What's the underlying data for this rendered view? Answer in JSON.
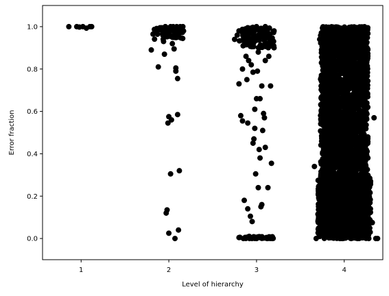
{
  "chart_data": {
    "type": "scatter",
    "title": "",
    "xlabel": "Level of hierarchy",
    "ylabel": "Error fraction",
    "xlim": [
      0.56,
      4.44
    ],
    "ylim": [
      -0.1,
      1.1
    ],
    "xticks": [
      "1",
      "2",
      "3",
      "4"
    ],
    "yticks": [
      "0.0",
      "0.2",
      "0.4",
      "0.6",
      "0.8",
      "1.0"
    ],
    "grid": false,
    "marker_color": "#000000",
    "groups": [
      {
        "x_center": 1,
        "points": [
          [
            0.86,
            1.0
          ],
          [
            0.95,
            1.0
          ],
          [
            0.98,
            0.998
          ],
          [
            1.02,
            1.0
          ],
          [
            1.06,
            0.993
          ],
          [
            1.1,
            1.0
          ],
          [
            1.12,
            1.0
          ]
        ]
      },
      {
        "x_center": 2,
        "points": [
          [
            1.8,
            0.89
          ],
          [
            1.82,
            0.965
          ],
          [
            1.86,
            0.975
          ],
          [
            1.88,
            0.81
          ],
          [
            1.9,
            0.985
          ],
          [
            1.92,
            0.995
          ],
          [
            1.94,
            0.93
          ],
          [
            1.95,
            0.87
          ],
          [
            1.96,
            1.0
          ],
          [
            1.97,
            0.12
          ],
          [
            1.98,
            0.135
          ],
          [
            1.99,
            0.545
          ],
          [
            2.0,
            0.025
          ],
          [
            2.0,
            0.575
          ],
          [
            2.01,
            0.96
          ],
          [
            2.02,
            0.305
          ],
          [
            2.03,
            0.56
          ],
          [
            2.04,
            0.92
          ],
          [
            2.05,
            1.0
          ],
          [
            2.06,
            0.995
          ],
          [
            2.06,
            0.895
          ],
          [
            2.07,
            0.0
          ],
          [
            2.08,
            0.805
          ],
          [
            2.08,
            0.79
          ],
          [
            2.09,
            0.98
          ],
          [
            2.1,
            0.585
          ],
          [
            2.1,
            0.755
          ],
          [
            2.11,
            0.04
          ],
          [
            2.12,
            0.32
          ],
          [
            2.12,
            0.97
          ],
          [
            2.13,
            1.0
          ],
          [
            2.14,
            0.99
          ],
          [
            2.16,
            1.0
          ],
          [
            1.9,
            0.995
          ],
          [
            1.96,
            0.98
          ],
          [
            2.02,
            1.0
          ],
          [
            2.09,
            1.0
          ]
        ]
      },
      {
        "x_center": 3,
        "points": [
          [
            2.75,
            0.94
          ],
          [
            2.78,
            0.96
          ],
          [
            2.8,
            0.98
          ],
          [
            2.8,
            0.73
          ],
          [
            2.82,
            0.58
          ],
          [
            2.84,
            0.555
          ],
          [
            2.84,
            0.8
          ],
          [
            2.85,
            0.0
          ],
          [
            2.86,
            0.18
          ],
          [
            2.87,
            0.005
          ],
          [
            2.88,
            0.94
          ],
          [
            2.89,
            0.75
          ],
          [
            2.9,
            0.545
          ],
          [
            2.9,
            0.14
          ],
          [
            2.91,
            0.84
          ],
          [
            2.92,
            0.0
          ],
          [
            2.93,
            0.105
          ],
          [
            2.94,
            0.82
          ],
          [
            2.95,
            0.08
          ],
          [
            2.96,
            0.785
          ],
          [
            2.96,
            0.45
          ],
          [
            2.97,
            0.47
          ],
          [
            2.98,
            0.61
          ],
          [
            2.99,
            0.305
          ],
          [
            3.0,
            0.0
          ],
          [
            3.0,
            0.66
          ],
          [
            3.01,
            0.79
          ],
          [
            3.02,
            0.24
          ],
          [
            3.03,
            0.42
          ],
          [
            3.04,
            0.38
          ],
          [
            3.05,
            0.15
          ],
          [
            3.06,
            0.16
          ],
          [
            3.06,
            0.72
          ],
          [
            3.07,
            0.51
          ],
          [
            3.08,
            0.59
          ],
          [
            3.09,
            0.57
          ],
          [
            3.1,
            0.84
          ],
          [
            3.1,
            0.43
          ],
          [
            3.12,
            0.0
          ],
          [
            3.13,
            0.24
          ],
          [
            3.14,
            0.86
          ],
          [
            3.16,
            0.72
          ],
          [
            3.17,
            0.355
          ],
          [
            3.18,
            0.0
          ],
          [
            3.2,
            0.98
          ],
          [
            2.9,
            0.995
          ],
          [
            3.0,
            1.0
          ],
          [
            3.05,
            0.99
          ],
          [
            3.1,
            1.0
          ],
          [
            2.95,
            0.92
          ],
          [
            3.02,
            0.88
          ],
          [
            2.88,
            0.86
          ],
          [
            3.12,
            0.96
          ],
          [
            2.98,
            0.52
          ],
          [
            3.04,
            0.66
          ]
        ]
      },
      {
        "x_center": 4,
        "points": [
          [
            3.66,
            0.34
          ],
          [
            3.68,
            0.0
          ],
          [
            3.7,
            0.115
          ],
          [
            3.72,
            0.94
          ],
          [
            3.74,
            0.66
          ],
          [
            3.75,
            0.015
          ],
          [
            3.76,
            0.25
          ],
          [
            3.78,
            0.6
          ],
          [
            3.8,
            0.98
          ],
          [
            3.8,
            0.36
          ],
          [
            3.82,
            0.77
          ],
          [
            3.84,
            0.46
          ],
          [
            3.85,
            0.005
          ],
          [
            3.86,
            0.16
          ],
          [
            3.88,
            0.54
          ],
          [
            3.9,
            0.88
          ],
          [
            3.92,
            0.1
          ],
          [
            3.94,
            0.3
          ],
          [
            3.95,
            0.0
          ],
          [
            3.96,
            0.72
          ],
          [
            3.98,
            0.42
          ],
          [
            4.0,
            0.985
          ],
          [
            4.0,
            0.2
          ],
          [
            4.02,
            0.62
          ],
          [
            4.04,
            0.06
          ],
          [
            4.05,
            0.5
          ],
          [
            4.06,
            0.83
          ],
          [
            4.08,
            0.0
          ],
          [
            4.1,
            0.35
          ],
          [
            4.12,
            0.27
          ],
          [
            4.14,
            0.7
          ],
          [
            4.15,
            0.0
          ],
          [
            4.16,
            0.47
          ],
          [
            4.18,
            0.11
          ],
          [
            4.2,
            0.9
          ],
          [
            4.22,
            0.4
          ],
          [
            4.24,
            0.02
          ],
          [
            4.25,
            0.21
          ],
          [
            4.26,
            0.73
          ],
          [
            4.28,
            0.0
          ],
          [
            4.3,
            0.27
          ],
          [
            4.32,
            0.075
          ],
          [
            4.34,
            0.57
          ],
          [
            4.36,
            0.0
          ],
          [
            4.38,
            0.0
          ]
        ]
      }
    ]
  }
}
